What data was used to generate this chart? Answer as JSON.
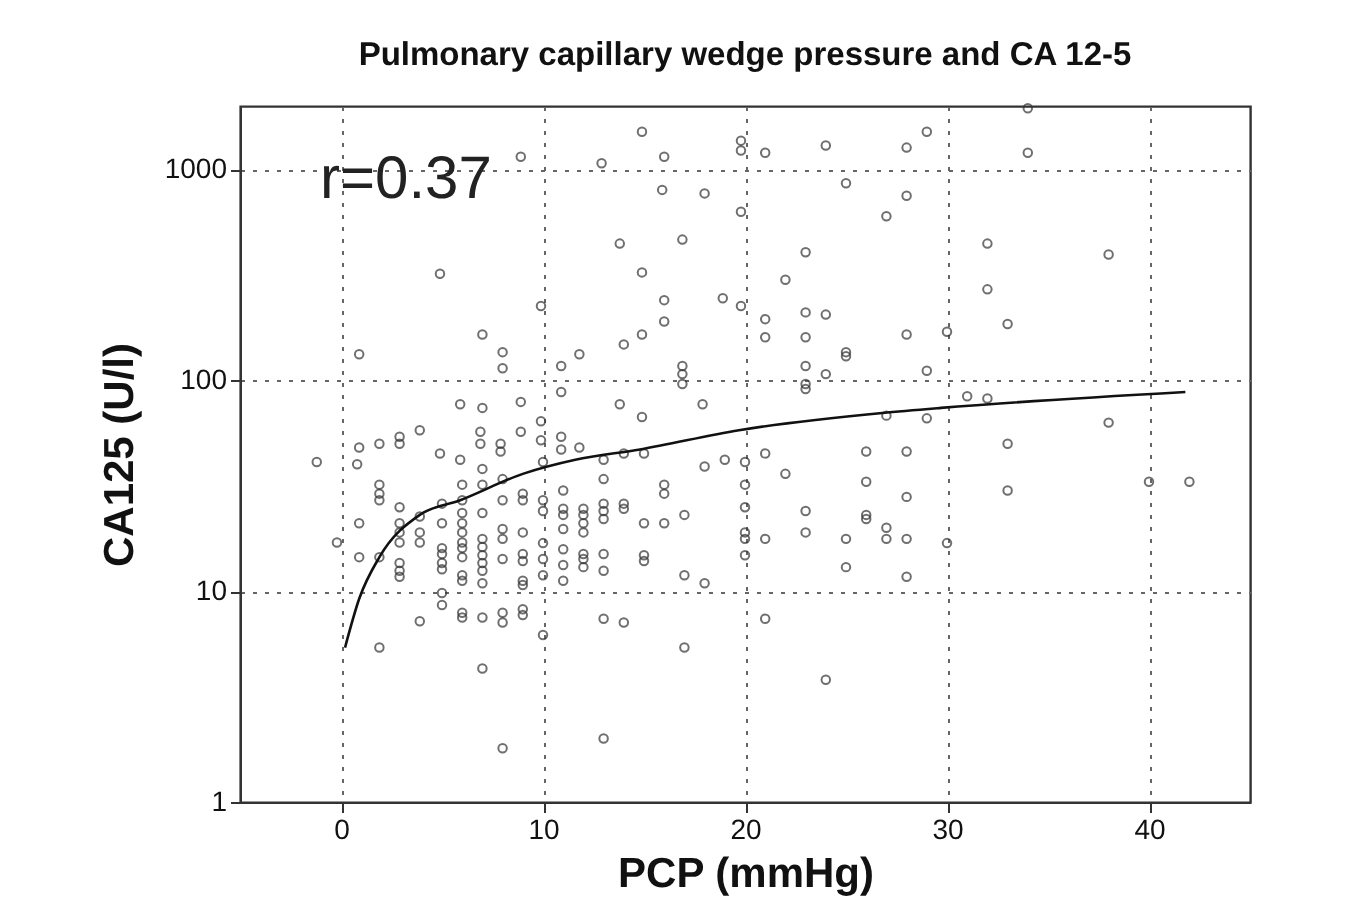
{
  "chart_data": {
    "type": "scatter",
    "title": "Pulmonary capillary wedge pressure and CA 12-5",
    "xlabel": "PCP (mmHg)",
    "ylabel": "CA125 (U/l)",
    "annotations": [
      "r=0.37"
    ],
    "xlim": [
      -5,
      45
    ],
    "xticks": [
      0,
      10,
      20,
      30,
      40
    ],
    "ylim": [
      1,
      2000
    ],
    "yticks": [
      1,
      10,
      100,
      1000
    ],
    "log": "y",
    "grid": true,
    "series": [
      {
        "marker": "circle",
        "color": "#333333",
        "x": [
          8.9,
          14.9,
          16,
          12.9,
          19.8,
          19.8,
          15.9,
          18,
          19.8,
          13.8,
          16.9,
          4.9,
          14.9,
          9.9,
          16,
          18.9,
          19.8,
          16,
          7,
          14.9,
          0.9,
          8,
          14,
          11.8,
          8,
          10.9,
          16.9,
          16.9,
          16.9,
          10.9,
          5.9,
          7,
          8.9,
          9.9,
          13.8,
          14.9,
          17.9,
          3.9,
          2.9,
          2.9,
          1.9,
          0.9,
          6.9,
          6.9,
          7.9,
          7.9,
          9.9,
          10.9,
          10.9,
          11.8,
          8.9,
          4.9,
          5.9,
          21,
          24,
          28,
          29,
          34,
          34,
          25,
          28,
          27,
          23,
          32,
          38,
          22,
          21,
          21,
          23,
          24,
          23,
          28,
          30,
          32,
          33,
          25,
          25,
          23,
          24,
          23,
          23,
          29,
          31,
          32,
          27,
          29,
          38,
          21,
          26,
          28,
          33,
          -1.2,
          -0.2,
          0.8,
          0.9,
          0.9,
          1.9,
          1.9,
          1.9,
          1.9,
          1.9,
          2.9,
          2.9,
          2.9,
          2.9,
          2.9,
          2.9,
          2.9,
          3.9,
          3.9,
          3.9,
          3.9,
          5,
          5,
          5,
          5,
          5,
          5,
          5,
          5,
          6,
          6,
          6,
          6,
          6,
          6,
          6,
          6,
          6,
          6,
          6,
          6,
          7,
          7,
          7,
          7,
          7,
          7,
          7,
          7,
          7,
          7,
          7,
          8,
          8,
          8,
          8,
          8,
          8,
          8,
          8,
          9,
          9,
          9,
          9,
          9,
          9,
          9,
          9,
          9,
          10,
          10,
          10,
          10,
          10,
          10,
          10,
          11,
          11,
          11,
          11,
          11,
          11,
          11,
          12,
          12,
          12,
          12,
          12,
          12,
          12,
          13,
          13,
          13,
          13,
          13,
          13,
          13,
          13,
          13,
          14,
          14,
          14,
          14,
          15,
          15,
          15,
          15,
          16,
          16,
          16,
          17,
          17,
          17,
          18,
          18,
          19,
          20,
          20,
          20,
          20,
          20,
          20,
          22,
          26,
          28,
          33,
          40,
          42,
          23,
          26,
          26,
          23,
          21,
          25,
          27,
          27,
          28,
          30,
          25,
          28,
          21,
          24
        ],
        "values": [
          1150,
          1510,
          1150,
          1070,
          1370,
          1230,
          800,
          770,
          630,
          445,
          465,
          320,
          325,
          225,
          240,
          245,
          225,
          190,
          165,
          165,
          133,
          136,
          148,
          133,
          114,
          117,
          117,
          107,
          96,
          88,
          77,
          74,
          79,
          64,
          77,
          67,
          77,
          58,
          54,
          50,
          50,
          48,
          57,
          50,
          50,
          46,
          52,
          54,
          47,
          48,
          57,
          45,
          42,
          1200,
          1300,
          1270,
          1510,
          1950,
          1200,
          860,
          750,
          600,
          405,
          445,
          395,
          300,
          195,
          160,
          210,
          205,
          160,
          165,
          170,
          270,
          185,
          136,
          130,
          117,
          107,
          96,
          91,
          111,
          84,
          82,
          68,
          66,
          63,
          45,
          46,
          46,
          50,
          41,
          17,
          40,
          21,
          14.5,
          32,
          29,
          27,
          14.5,
          5.4,
          25,
          21,
          19,
          17,
          13.6,
          12.5,
          11.7,
          22.6,
          19,
          17,
          7.2,
          26,
          21,
          16,
          15,
          13.6,
          12.7,
          9.8,
          8.6,
          32,
          27,
          23.5,
          21,
          19,
          17,
          16,
          14.5,
          11.9,
          11.2,
          7.9,
          7.5,
          38,
          32,
          23.5,
          17.7,
          16.2,
          14.8,
          13.6,
          12.5,
          10.9,
          7.5,
          4.3,
          34,
          27,
          19.7,
          17.7,
          14.2,
          7.9,
          7.1,
          1.8,
          29,
          27,
          19,
          15,
          13.9,
          11.2,
          10.7,
          8.2,
          7.7,
          41,
          27,
          24,
          16.9,
          14.2,
          11.9,
          6.2,
          30,
          24.6,
          23,
          19.7,
          15.8,
          13.3,
          11.2,
          24.6,
          23,
          21,
          19,
          15,
          14.2,
          13,
          42,
          34,
          26,
          24,
          22,
          15,
          12.5,
          7.4,
          2.0,
          45,
          26,
          24.6,
          7.1,
          45,
          21,
          14.8,
          13.9,
          32,
          29,
          21,
          23,
          11.9,
          5.4,
          39,
          10.9,
          42,
          32,
          25,
          19,
          17.7,
          14.8,
          41,
          36,
          33,
          28,
          30,
          33,
          33,
          24,
          23,
          22,
          19,
          17.7,
          17.7,
          20,
          17.7,
          17.7,
          16.9,
          13,
          11.7,
          7.4,
          3.8
        ]
      },
      {
        "type": "line",
        "color": "#111111",
        "x": [
          0.2,
          0.9,
          1.9,
          3.9,
          5.9,
          9,
          11.6,
          14.8,
          19.7,
          26.8,
          29.7,
          41.8
        ],
        "values": [
          5.4,
          9.2,
          14.5,
          23,
          27,
          36,
          42,
          47,
          58,
          70,
          74,
          88
        ]
      }
    ]
  }
}
